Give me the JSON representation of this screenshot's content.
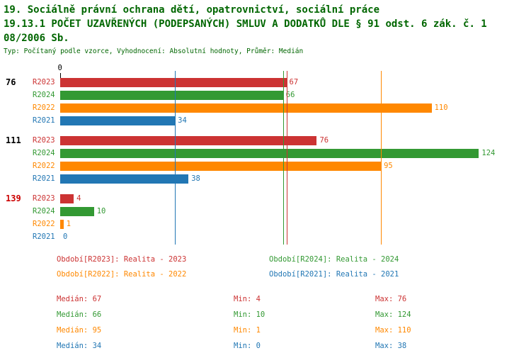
{
  "title": {
    "line1": "19. Sociálně právní ochrana dětí, opatrovnictví, sociální práce",
    "line2": "19.13.1 POČET UZAVŘENÝCH (PODEPSANÝCH) SMLUV A DODATKŮ DLE § 91 odst. 6 zák. č. 1",
    "line3": "08/2006 Sb.",
    "subtitle": "Typ: Počítaný podle vzorce, Vyhodnocení: Absolutní hodnoty, Průměr: Medián"
  },
  "colors": {
    "title": "#006600",
    "series": {
      "R2023": "#cc3333",
      "R2024": "#339933",
      "R2022": "#ff8800",
      "R2021": "#2277b4"
    }
  },
  "chart_data": {
    "type": "bar",
    "orientation": "horizontal",
    "title": "19.13.1 POČET UZAVŘENÝCH (PODEPSANÝCH) SMLUV A DODATKŮ DLE § 91 odst. 6 zák. č. 108/2006 Sb.",
    "axis_origin_label": "0",
    "xlim": [
      0,
      130
    ],
    "grid": false,
    "series_order": [
      "R2023",
      "R2024",
      "R2022",
      "R2021"
    ],
    "groups": [
      {
        "label": "76",
        "label_color": "#000000",
        "values": {
          "R2023": 67,
          "R2024": 66,
          "R2022": 110,
          "R2021": 34
        }
      },
      {
        "label": "111",
        "label_color": "#000000",
        "values": {
          "R2023": 76,
          "R2024": 124,
          "R2022": 95,
          "R2021": 38
        }
      },
      {
        "label": "139",
        "label_color": "#cc0000",
        "values": {
          "R2023": 4,
          "R2024": 10,
          "R2022": 1,
          "R2021": 0
        }
      }
    ],
    "median_lines": {
      "R2023": 67,
      "R2024": 66,
      "R2022": 95,
      "R2021": 34
    }
  },
  "legend": [
    {
      "series": "R2023",
      "label": "Období[R2023]: Realita - 2023"
    },
    {
      "series": "R2024",
      "label": "Období[R2024]: Realita - 2024"
    },
    {
      "series": "R2022",
      "label": "Období[R2022]: Realita - 2022"
    },
    {
      "series": "R2021",
      "label": "Období[R2021]: Realita - 2021"
    }
  ],
  "stats_labels": {
    "median": "Medián",
    "min": "Min",
    "max": "Max"
  },
  "stats": [
    {
      "series": "R2023",
      "median": 67,
      "min": 4,
      "max": 76
    },
    {
      "series": "R2024",
      "median": 66,
      "min": 10,
      "max": 124
    },
    {
      "series": "R2022",
      "median": 95,
      "min": 1,
      "max": 110
    },
    {
      "series": "R2021",
      "median": 34,
      "min": 0,
      "max": 38
    }
  ]
}
